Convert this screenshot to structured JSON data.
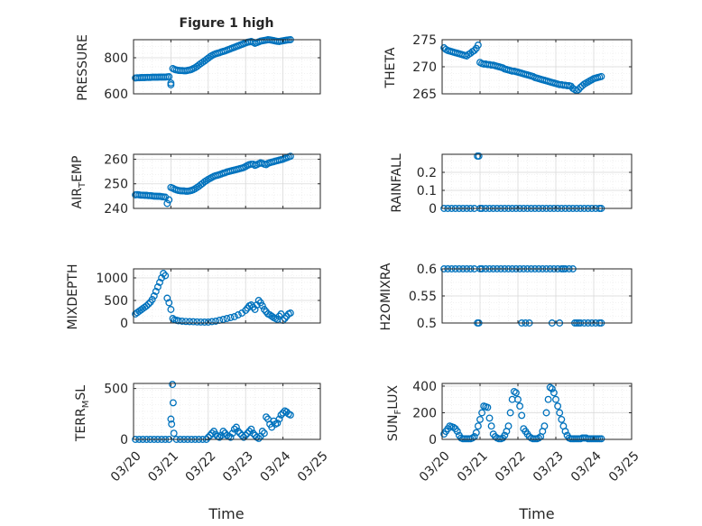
{
  "figure": {
    "title": "Figure 1 high",
    "xlabel": "Time",
    "xticks": [
      "03/20",
      "03/21",
      "03/22",
      "03/23",
      "03/24",
      "03/25"
    ]
  },
  "colors": {
    "marker": "#0072BD",
    "axis": "#262626",
    "grid_major": "#d9d9d9",
    "grid_minor": "#e6e6e6",
    "background": "#ffffff"
  },
  "chart_data": [
    {
      "type": "scatter",
      "name": "PRESSURE",
      "ylabel": "PRESSURE",
      "xlim": [
        0,
        5
      ],
      "ylim": [
        600,
        900
      ],
      "yticks": [
        600,
        800
      ],
      "ytick_labels": [
        "600",
        "800"
      ],
      "grid": true,
      "x": [
        0.05,
        0.1,
        0.15,
        0.2,
        0.25,
        0.3,
        0.35,
        0.4,
        0.45,
        0.5,
        0.55,
        0.6,
        0.65,
        0.7,
        0.75,
        0.8,
        0.85,
        0.9,
        0.95,
        1.0,
        1.0,
        1.05,
        1.1,
        1.15,
        1.2,
        1.25,
        1.3,
        1.35,
        1.4,
        1.45,
        1.5,
        1.55,
        1.6,
        1.65,
        1.7,
        1.75,
        1.8,
        1.85,
        1.9,
        1.95,
        2.0,
        2.05,
        2.1,
        2.15,
        2.2,
        2.25,
        2.3,
        2.35,
        2.4,
        2.45,
        2.5,
        2.55,
        2.6,
        2.65,
        2.7,
        2.75,
        2.8,
        2.85,
        2.9,
        2.95,
        3.0,
        3.05,
        3.1,
        3.15,
        3.2,
        3.25,
        3.3,
        3.35,
        3.4,
        3.45,
        3.5,
        3.55,
        3.6,
        3.65,
        3.7,
        3.75,
        3.8,
        3.85,
        3.9,
        3.95,
        4.0,
        4.05,
        4.1,
        4.15,
        4.2
      ],
      "y": [
        688,
        689,
        689,
        690,
        690,
        690,
        691,
        691,
        691,
        692,
        692,
        692,
        692,
        693,
        693,
        693,
        693,
        694,
        695,
        660,
        650,
        740,
        735,
        732,
        730,
        729,
        729,
        728,
        728,
        730,
        732,
        735,
        740,
        745,
        752,
        760,
        768,
        775,
        782,
        790,
        798,
        806,
        812,
        818,
        822,
        825,
        828,
        832,
        835,
        838,
        842,
        846,
        850,
        854,
        858,
        862,
        866,
        870,
        874,
        878,
        882,
        886,
        888,
        890,
        886,
        880,
        884,
        888,
        892,
        894,
        896,
        898,
        900,
        899,
        897,
        895,
        893,
        891,
        890,
        892,
        894,
        896,
        898,
        899,
        900
      ]
    },
    {
      "type": "scatter",
      "name": "THETA",
      "ylabel": "THETA",
      "xlim": [
        0,
        5
      ],
      "ylim": [
        265,
        275
      ],
      "yticks": [
        265,
        270,
        275
      ],
      "ytick_labels": [
        "265",
        "270",
        "275"
      ],
      "grid": true,
      "x": [
        0.05,
        0.1,
        0.15,
        0.2,
        0.25,
        0.3,
        0.35,
        0.4,
        0.45,
        0.5,
        0.55,
        0.6,
        0.65,
        0.7,
        0.75,
        0.8,
        0.85,
        0.9,
        0.95,
        1.0,
        1.05,
        1.1,
        1.15,
        1.2,
        1.25,
        1.3,
        1.35,
        1.4,
        1.45,
        1.5,
        1.55,
        1.6,
        1.65,
        1.7,
        1.75,
        1.8,
        1.85,
        1.9,
        1.95,
        2.0,
        2.05,
        2.1,
        2.15,
        2.2,
        2.25,
        2.3,
        2.35,
        2.4,
        2.45,
        2.5,
        2.55,
        2.6,
        2.65,
        2.7,
        2.75,
        2.8,
        2.85,
        2.9,
        2.95,
        3.0,
        3.05,
        3.1,
        3.15,
        3.2,
        3.25,
        3.3,
        3.35,
        3.4,
        3.45,
        3.5,
        3.55,
        3.6,
        3.65,
        3.7,
        3.75,
        3.8,
        3.85,
        3.9,
        3.95,
        4.0,
        4.05,
        4.1,
        4.15,
        4.2
      ],
      "y": [
        273.5,
        273.2,
        273.0,
        272.9,
        272.8,
        272.7,
        272.6,
        272.5,
        272.4,
        272.3,
        272.2,
        272.1,
        272.0,
        272.3,
        272.5,
        272.8,
        273.0,
        273.4,
        274.0,
        270.8,
        270.6,
        270.5,
        270.5,
        270.4,
        270.4,
        270.3,
        270.3,
        270.2,
        270.1,
        270.0,
        269.9,
        269.8,
        269.6,
        269.5,
        269.4,
        269.3,
        269.2,
        269.2,
        269.1,
        269.0,
        268.9,
        268.8,
        268.7,
        268.6,
        268.5,
        268.4,
        268.3,
        268.2,
        268.0,
        267.9,
        267.8,
        267.7,
        267.6,
        267.5,
        267.4,
        267.3,
        267.2,
        267.1,
        267.0,
        266.9,
        266.8,
        266.7,
        266.7,
        266.6,
        266.6,
        266.5,
        266.5,
        266.4,
        266.0,
        265.8,
        265.6,
        265.8,
        266.2,
        266.5,
        266.8,
        267.0,
        267.2,
        267.4,
        267.6,
        267.8,
        267.9,
        268.0,
        268.1,
        268.2
      ]
    },
    {
      "type": "scatter",
      "name": "AIR_TEMP",
      "ylabel": "AIR_TEMP",
      "xlim": [
        0,
        5
      ],
      "ylim": [
        240,
        262
      ],
      "yticks": [
        240,
        250,
        260
      ],
      "ytick_labels": [
        "240",
        "250",
        "260"
      ],
      "grid": true,
      "x": [
        0.05,
        0.1,
        0.15,
        0.2,
        0.25,
        0.3,
        0.35,
        0.4,
        0.45,
        0.5,
        0.55,
        0.6,
        0.65,
        0.7,
        0.75,
        0.8,
        0.85,
        0.9,
        0.95,
        1.0,
        1.05,
        1.1,
        1.15,
        1.2,
        1.25,
        1.3,
        1.35,
        1.4,
        1.45,
        1.5,
        1.55,
        1.6,
        1.65,
        1.7,
        1.75,
        1.8,
        1.85,
        1.9,
        1.95,
        2.0,
        2.05,
        2.1,
        2.15,
        2.2,
        2.25,
        2.3,
        2.35,
        2.4,
        2.45,
        2.5,
        2.55,
        2.6,
        2.65,
        2.7,
        2.75,
        2.8,
        2.85,
        2.9,
        2.95,
        3.0,
        3.05,
        3.1,
        3.15,
        3.2,
        3.25,
        3.3,
        3.35,
        3.4,
        3.45,
        3.5,
        3.55,
        3.6,
        3.65,
        3.7,
        3.75,
        3.8,
        3.85,
        3.9,
        3.95,
        4.0,
        4.05,
        4.1,
        4.15,
        4.2
      ],
      "y": [
        245.5,
        245.6,
        245.5,
        245.4,
        245.4,
        245.3,
        245.3,
        245.2,
        245.2,
        245.1,
        245.0,
        245.0,
        244.9,
        244.9,
        244.8,
        244.7,
        244.6,
        242.0,
        243.5,
        248.5,
        248.2,
        247.8,
        247.5,
        247.3,
        247.2,
        247.1,
        247.1,
        247.0,
        247.0,
        247.1,
        247.3,
        247.6,
        248.0,
        248.5,
        249.0,
        249.6,
        250.2,
        250.8,
        251.3,
        251.8,
        252.2,
        252.6,
        253.0,
        253.3,
        253.5,
        253.7,
        254.0,
        254.3,
        254.5,
        254.8,
        255.0,
        255.2,
        255.4,
        255.6,
        255.8,
        256.0,
        256.2,
        256.4,
        256.6,
        257.0,
        257.5,
        257.8,
        258.0,
        258.0,
        257.5,
        257.8,
        258.2,
        258.5,
        258.3,
        258.0,
        257.8,
        258.3,
        258.6,
        258.8,
        259.0,
        259.2,
        259.4,
        259.6,
        259.8,
        260.0,
        260.3,
        260.6,
        260.9,
        261.2
      ]
    },
    {
      "type": "scatter",
      "name": "RAINFALL",
      "ylabel": "RAINFALL",
      "xlim": [
        0,
        5
      ],
      "ylim": [
        0,
        0.3
      ],
      "yticks": [
        0,
        0.1,
        0.2
      ],
      "ytick_labels": [
        "0",
        "0.1",
        "0.2"
      ],
      "grid": true,
      "x": [
        0.05,
        0.15,
        0.25,
        0.35,
        0.45,
        0.55,
        0.65,
        0.75,
        0.85,
        0.93,
        0.97,
        1.0,
        1.05,
        1.15,
        1.25,
        1.35,
        1.45,
        1.55,
        1.65,
        1.75,
        1.85,
        1.95,
        2.05,
        2.15,
        2.25,
        2.35,
        2.45,
        2.55,
        2.65,
        2.75,
        2.85,
        2.95,
        3.05,
        3.15,
        3.25,
        3.35,
        3.45,
        3.55,
        3.65,
        3.75,
        3.85,
        3.95,
        4.05,
        4.15,
        4.2
      ],
      "y": [
        0,
        0,
        0,
        0,
        0,
        0,
        0,
        0,
        0,
        0.29,
        0.29,
        0,
        0,
        0,
        0,
        0,
        0,
        0,
        0,
        0,
        0,
        0,
        0,
        0,
        0,
        0,
        0,
        0,
        0,
        0,
        0,
        0,
        0,
        0,
        0,
        0,
        0,
        0,
        0,
        0,
        0,
        0,
        0,
        0,
        0
      ]
    },
    {
      "type": "scatter",
      "name": "MIXDEPTH",
      "ylabel": "MIXDEPTH",
      "xlim": [
        0,
        5
      ],
      "ylim": [
        0,
        1200
      ],
      "yticks": [
        0,
        500,
        1000
      ],
      "ytick_labels": [
        "0",
        "500",
        "1000"
      ],
      "grid": true,
      "x": [
        0.05,
        0.1,
        0.15,
        0.2,
        0.25,
        0.3,
        0.35,
        0.4,
        0.45,
        0.5,
        0.55,
        0.6,
        0.65,
        0.7,
        0.75,
        0.8,
        0.85,
        0.9,
        0.95,
        1.0,
        1.05,
        1.1,
        1.15,
        1.2,
        1.3,
        1.4,
        1.5,
        1.6,
        1.7,
        1.8,
        1.9,
        2.0,
        2.1,
        2.2,
        2.3,
        2.4,
        2.5,
        2.6,
        2.7,
        2.8,
        2.9,
        3.0,
        3.05,
        3.1,
        3.15,
        3.2,
        3.25,
        3.3,
        3.35,
        3.4,
        3.45,
        3.5,
        3.55,
        3.6,
        3.65,
        3.7,
        3.75,
        3.8,
        3.85,
        3.9,
        3.95,
        4.0,
        4.05,
        4.1,
        4.15,
        4.2
      ],
      "y": [
        200,
        230,
        260,
        290,
        320,
        350,
        380,
        420,
        460,
        520,
        600,
        700,
        800,
        900,
        1000,
        1100,
        1050,
        550,
        450,
        300,
        100,
        70,
        60,
        50,
        40,
        35,
        30,
        28,
        25,
        22,
        20,
        20,
        30,
        40,
        60,
        80,
        100,
        120,
        140,
        180,
        220,
        280,
        330,
        380,
        400,
        350,
        300,
        400,
        500,
        450,
        380,
        300,
        250,
        200,
        180,
        150,
        120,
        100,
        80,
        150,
        200,
        60,
        100,
        150,
        200,
        220
      ]
    },
    {
      "type": "scatter",
      "name": "H2OMIXRA",
      "ylabel": "H2OMIXRA",
      "xlim": [
        0,
        5
      ],
      "ylim": [
        0.5,
        0.6
      ],
      "yticks": [
        0.5,
        0.55,
        0.6
      ],
      "ytick_labels": [
        "0.5",
        "0.55",
        "0.6"
      ],
      "grid": true,
      "x": [
        0.05,
        0.15,
        0.25,
        0.35,
        0.45,
        0.55,
        0.65,
        0.75,
        0.85,
        0.93,
        0.97,
        1.05,
        1.15,
        1.25,
        1.35,
        1.45,
        1.55,
        1.65,
        1.75,
        1.85,
        1.95,
        2.05,
        2.15,
        2.25,
        2.35,
        2.45,
        2.55,
        2.65,
        2.75,
        2.85,
        2.95,
        3.05,
        3.15,
        3.2,
        3.25,
        3.35,
        3.45,
        3.5,
        3.55,
        3.6,
        3.65,
        3.75,
        3.85,
        3.95,
        4.05,
        4.15,
        4.2,
        1.0,
        2.1,
        2.2,
        2.3,
        2.9,
        3.1
      ],
      "y": [
        0.6,
        0.6,
        0.6,
        0.6,
        0.6,
        0.6,
        0.6,
        0.6,
        0.6,
        0.5,
        0.5,
        0.6,
        0.6,
        0.6,
        0.6,
        0.6,
        0.6,
        0.6,
        0.6,
        0.6,
        0.6,
        0.6,
        0.6,
        0.6,
        0.6,
        0.6,
        0.6,
        0.6,
        0.6,
        0.6,
        0.6,
        0.6,
        0.6,
        0.6,
        0.6,
        0.6,
        0.6,
        0.5,
        0.5,
        0.5,
        0.5,
        0.5,
        0.5,
        0.5,
        0.5,
        0.5,
        0.5,
        0.6,
        0.5,
        0.5,
        0.5,
        0.5,
        0.5
      ]
    },
    {
      "type": "scatter",
      "name": "TERR_MSL",
      "ylabel": "TERR_MSL",
      "xlim": [
        0,
        5
      ],
      "ylim": [
        0,
        550
      ],
      "yticks": [
        0,
        500
      ],
      "ytick_labels": [
        "0",
        "500"
      ],
      "grid": true,
      "x": [
        0.05,
        0.15,
        0.25,
        0.35,
        0.45,
        0.55,
        0.65,
        0.75,
        0.85,
        0.95,
        1.0,
        1.02,
        1.04,
        1.06,
        1.08,
        1.15,
        1.25,
        1.35,
        1.45,
        1.55,
        1.65,
        1.75,
        1.85,
        1.95,
        2.0,
        2.05,
        2.1,
        2.15,
        2.2,
        2.25,
        2.3,
        2.35,
        2.4,
        2.45,
        2.5,
        2.55,
        2.6,
        2.65,
        2.7,
        2.75,
        2.8,
        2.85,
        2.9,
        2.95,
        3.0,
        3.05,
        3.1,
        3.15,
        3.2,
        3.25,
        3.3,
        3.35,
        3.4,
        3.45,
        3.5,
        3.55,
        3.6,
        3.65,
        3.7,
        3.75,
        3.8,
        3.85,
        3.9,
        3.95,
        4.0,
        4.05,
        4.1,
        4.15,
        4.2
      ],
      "y": [
        0,
        0,
        0,
        0,
        0,
        0,
        0,
        0,
        0,
        0,
        200,
        150,
        540,
        360,
        60,
        0,
        0,
        0,
        0,
        0,
        0,
        0,
        0,
        0,
        20,
        40,
        60,
        80,
        50,
        30,
        20,
        40,
        80,
        60,
        40,
        30,
        20,
        60,
        100,
        120,
        80,
        60,
        40,
        20,
        40,
        60,
        80,
        100,
        60,
        40,
        20,
        10,
        30,
        80,
        60,
        220,
        200,
        150,
        120,
        180,
        150,
        160,
        200,
        240,
        260,
        280,
        270,
        250,
        240
      ]
    },
    {
      "type": "scatter",
      "name": "SUN_FLUX",
      "ylabel": "SUN_FLUX",
      "xlim": [
        0,
        5
      ],
      "ylim": [
        0,
        420
      ],
      "yticks": [
        0,
        200,
        400
      ],
      "ytick_labels": [
        "0",
        "200",
        "400"
      ],
      "grid": true,
      "x": [
        0.05,
        0.1,
        0.15,
        0.2,
        0.25,
        0.3,
        0.35,
        0.4,
        0.45,
        0.5,
        0.55,
        0.6,
        0.65,
        0.7,
        0.75,
        0.8,
        0.85,
        0.9,
        0.95,
        1.0,
        1.05,
        1.1,
        1.15,
        1.2,
        1.25,
        1.3,
        1.35,
        1.4,
        1.45,
        1.5,
        1.55,
        1.6,
        1.65,
        1.7,
        1.75,
        1.8,
        1.85,
        1.9,
        1.95,
        2.0,
        2.05,
        2.1,
        2.15,
        2.2,
        2.25,
        2.3,
        2.35,
        2.4,
        2.45,
        2.5,
        2.55,
        2.6,
        2.65,
        2.7,
        2.75,
        2.8,
        2.85,
        2.9,
        2.95,
        3.0,
        3.05,
        3.1,
        3.15,
        3.2,
        3.25,
        3.3,
        3.35,
        3.4,
        3.45,
        3.5,
        3.55,
        3.6,
        3.65,
        3.7,
        3.75,
        3.8,
        3.85,
        3.9,
        3.95,
        4.0,
        4.05,
        4.1,
        4.15,
        4.2
      ],
      "y": [
        40,
        60,
        80,
        100,
        95,
        90,
        80,
        60,
        30,
        10,
        5,
        5,
        5,
        5,
        5,
        10,
        20,
        50,
        100,
        150,
        200,
        250,
        245,
        240,
        160,
        100,
        40,
        20,
        10,
        5,
        5,
        10,
        30,
        60,
        100,
        200,
        300,
        360,
        350,
        300,
        250,
        180,
        80,
        60,
        40,
        20,
        10,
        5,
        5,
        5,
        10,
        20,
        60,
        100,
        200,
        300,
        390,
        380,
        350,
        300,
        250,
        200,
        150,
        100,
        60,
        30,
        10,
        5,
        5,
        5,
        5,
        5,
        5,
        10,
        10,
        10,
        5,
        5,
        5,
        5,
        5,
        5,
        5,
        5
      ]
    }
  ]
}
